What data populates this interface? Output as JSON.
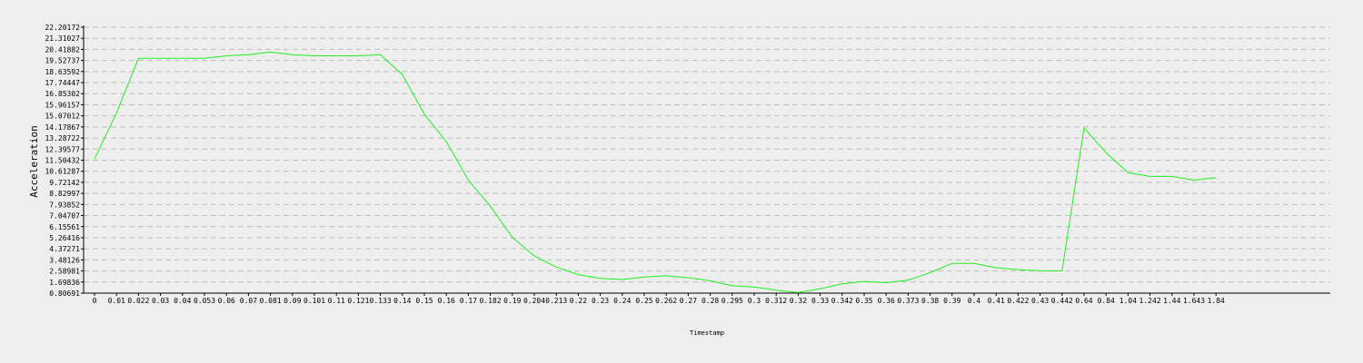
{
  "chart_data": {
    "type": "line",
    "xlabel": "Timestamp",
    "ylabel": "Acceleration",
    "grid": true,
    "y_ticks": [
      "0.80691",
      "1.69836",
      "2.58981",
      "3.48126",
      "4.37271",
      "5.26416",
      "6.15561",
      "7.04707",
      "7.93852",
      "8.82997",
      "9.72142",
      "10.61287",
      "11.50432",
      "12.39577",
      "13.28722",
      "14.17867",
      "15.07012",
      "15.96157",
      "16.85302",
      "17.74447",
      "18.63592",
      "19.52737",
      "20.41882",
      "21.31027",
      "22.20172"
    ],
    "ylim": [
      0.80691,
      22.20172
    ],
    "series_color": "#22ee22",
    "categories": [
      "0",
      "0.01",
      "0.022",
      "0.03",
      "0.04",
      "0.053",
      "0.06",
      "0.07",
      "0.081",
      "0.09",
      "0.101",
      "0.11",
      "0.121",
      "0.133",
      "0.14",
      "0.15",
      "0.16",
      "0.17",
      "0.182",
      "0.19",
      "0.204",
      "0.213",
      "0.22",
      "0.23",
      "0.24",
      "0.25",
      "0.262",
      "0.27",
      "0.28",
      "0.295",
      "0.3",
      "0.312",
      "0.32",
      "0.33",
      "0.342",
      "0.35",
      "0.36",
      "0.373",
      "0.38",
      "0.39",
      "0.4",
      "0.41",
      "0.422",
      "0.43",
      "0.442",
      "0.64",
      "0.84",
      "1.04",
      "1.242",
      "1.44",
      "1.643",
      "1.84"
    ],
    "values": [
      11.6,
      15.3,
      19.7,
      19.7,
      19.7,
      19.7,
      19.9,
      20.0,
      20.2,
      20.0,
      19.9,
      19.9,
      19.9,
      20.0,
      18.4,
      15.2,
      13.0,
      9.9,
      7.8,
      5.3,
      3.8,
      2.9,
      2.3,
      2.0,
      1.9,
      2.1,
      2.2,
      2.05,
      1.8,
      1.4,
      1.3,
      1.05,
      0.85,
      1.15,
      1.55,
      1.75,
      1.65,
      1.85,
      2.45,
      3.2,
      3.2,
      2.85,
      2.7,
      2.6,
      2.6,
      14.1,
      12.1,
      10.5,
      10.2,
      10.2,
      9.9,
      10.1
    ]
  }
}
